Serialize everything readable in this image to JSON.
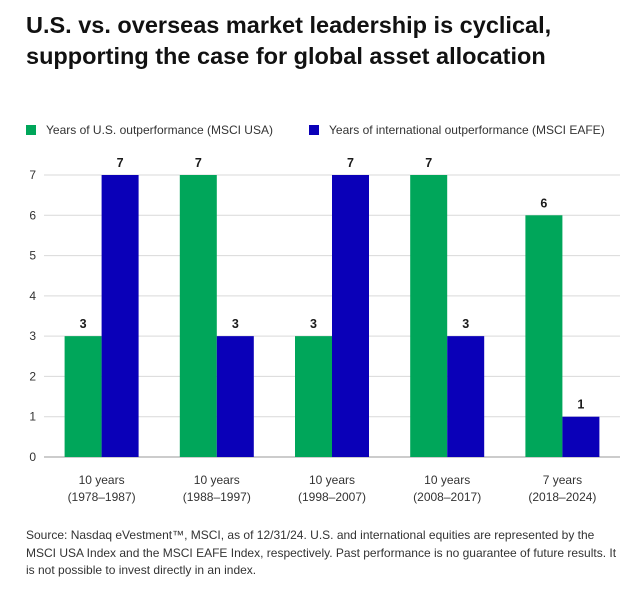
{
  "title_lines": [
    "U.S. vs. overseas market leadership is cyclical,",
    "supporting the case for global asset allocation"
  ],
  "legend": [
    {
      "label": "Years of U.S. outperformance (MSCI USA)",
      "color": "#00A65A"
    },
    {
      "label": "Years of international outperformance (MSCI EAFE)",
      "color": "#0A00B8"
    }
  ],
  "chart_data": {
    "type": "bar",
    "categories": [
      {
        "line1": "10 years",
        "line2": "(1978–1987)"
      },
      {
        "line1": "10 years",
        "line2": "(1988–1997)"
      },
      {
        "line1": "10 years",
        "line2": "(1998–2007)"
      },
      {
        "line1": "10 years",
        "line2": "(2008–2017)"
      },
      {
        "line1": "7 years",
        "line2": "(2018–2024)"
      }
    ],
    "series": [
      {
        "name": "Years of U.S. outperformance (MSCI USA)",
        "color": "#00A65A",
        "values": [
          3,
          7,
          3,
          7,
          6
        ]
      },
      {
        "name": "Years of international outperformance (MSCI EAFE)",
        "color": "#0A00B8",
        "values": [
          7,
          3,
          7,
          3,
          1
        ]
      }
    ],
    "yticks": [
      {
        "value": 0,
        "label": "0"
      },
      {
        "value": 1,
        "label": "1"
      },
      {
        "value": 2,
        "label": "2"
      },
      {
        "value": 3,
        "label": "3"
      },
      {
        "value": 4,
        "label": "4"
      },
      {
        "value": 5,
        "label": "5"
      },
      {
        "value": 6,
        "label": "6"
      },
      {
        "value": 7,
        "label": "7"
      }
    ],
    "ylim": [
      0,
      7
    ],
    "grid": true,
    "title": "",
    "xlabel": "",
    "ylabel": ""
  },
  "source_text": "Source: Nasdaq eVestment™, MSCI, as of 12/31/24. U.S. and international equities are represented by the MSCI USA Index and the MSCI EAFE Index, respectively. Past performance is no guarantee of future results. It is not possible to invest directly in an index."
}
